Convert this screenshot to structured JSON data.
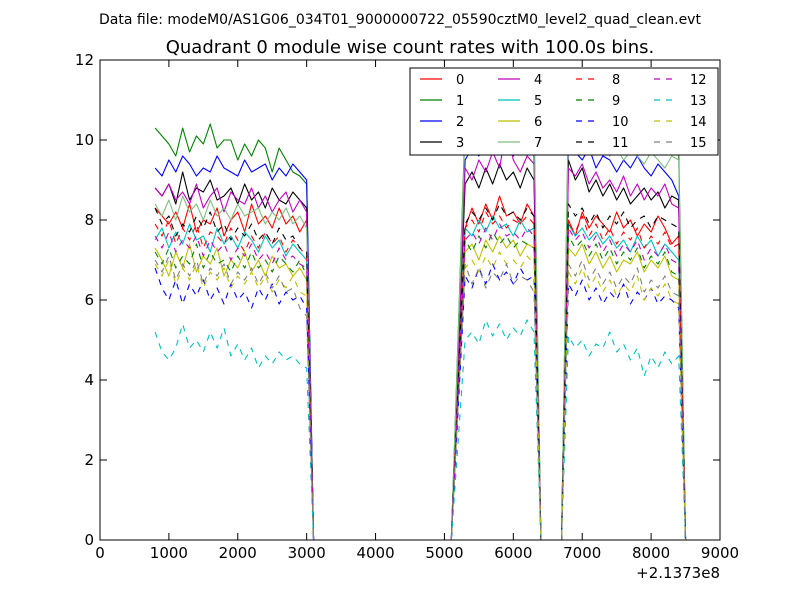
{
  "figure": {
    "supertitle": "Data file: modeM0/AS1G06_034T01_9000000722_05590cztM0_level2_quad_clean.evt",
    "title": "Quadrant 0 module wise count rates with 100.0s bins.",
    "x_offset_label": "+2.1373e8"
  },
  "chart_data": {
    "type": "line",
    "title": "Quadrant 0 module wise count rates with 100.0s bins.",
    "xlabel": "",
    "ylabel": "",
    "xlim": [
      0,
      9000
    ],
    "ylim": [
      0,
      12
    ],
    "x_ticks": [
      0,
      1000,
      2000,
      3000,
      4000,
      5000,
      6000,
      7000,
      8000,
      9000
    ],
    "y_ticks": [
      0,
      2,
      4,
      6,
      8,
      10,
      12
    ],
    "x_offset": 213730000,
    "grid": false,
    "legend_placement": "top-right",
    "legend_columns": 4,
    "segments": [
      {
        "start": 800,
        "end": 3000,
        "count": 23
      },
      {
        "start": 5300,
        "end": 6300,
        "count": 11
      },
      {
        "start": 6800,
        "end": 8400,
        "count": 17
      }
    ],
    "gap_zero_x": [
      3100,
      5100,
      6400,
      6700,
      8500
    ],
    "series": [
      {
        "name": "0",
        "color": "#ff0000",
        "style": "solid",
        "values": [
          8.3,
          8.1,
          7.9,
          8.2,
          7.8,
          8.4,
          7.7,
          8.0,
          7.9,
          8.3,
          7.6,
          8.0,
          8.2,
          7.7,
          8.4,
          7.9,
          8.1,
          7.8,
          8.3,
          7.9,
          8.1,
          7.7,
          8.0,
          7.8,
          8.3,
          7.9,
          8.4,
          8.0,
          8.6,
          8.1,
          8.2,
          7.9,
          8.4,
          8.1,
          8.0,
          7.6,
          8.2,
          7.8,
          8.1,
          7.9,
          7.7,
          8.2,
          7.8,
          8.0,
          7.6,
          7.9,
          7.7,
          8.1,
          7.8,
          7.4,
          7.6
        ]
      },
      {
        "name": "1",
        "color": "#008000",
        "style": "solid",
        "values": [
          10.3,
          10.1,
          9.9,
          9.6,
          10.3,
          9.7,
          10.1,
          9.9,
          10.4,
          9.8,
          10.0,
          10.0,
          9.5,
          9.9,
          9.6,
          10.0,
          9.8,
          9.2,
          9.8,
          9.5,
          9.2,
          9.1,
          8.9,
          10.4,
          10.2,
          10.5,
          10.3,
          10.6,
          10.4,
          10.2,
          10.5,
          10.4,
          10.6,
          10.4,
          10.8,
          10.5,
          10.2,
          10.4,
          9.8,
          10.0,
          9.8,
          10.1,
          9.8,
          10.2,
          9.6,
          9.8,
          10.0,
          9.7,
          10.1,
          9.9,
          9.8
        ]
      },
      {
        "name": "2",
        "color": "#0000ff",
        "style": "solid",
        "values": [
          9.3,
          9.1,
          9.5,
          9.2,
          9.6,
          9.4,
          9.1,
          9.3,
          9.2,
          9.6,
          9.3,
          9.2,
          9.1,
          9.5,
          9.2,
          9.3,
          9.4,
          9.0,
          9.3,
          9.1,
          9.4,
          9.2,
          9.0,
          9.5,
          9.8,
          9.6,
          9.9,
          9.7,
          10.0,
          9.8,
          9.6,
          9.9,
          10.1,
          9.7,
          10.0,
          9.7,
          9.5,
          9.8,
          9.3,
          9.6,
          9.5,
          9.2,
          9.5,
          9.3,
          9.6,
          9.3,
          9.1,
          9.4,
          9.2,
          9.0,
          8.6
        ]
      },
      {
        "name": "3",
        "color": "#000000",
        "style": "solid",
        "values": [
          8.8,
          8.6,
          8.9,
          8.4,
          9.2,
          8.5,
          8.8,
          8.7,
          9.0,
          8.5,
          8.6,
          8.8,
          8.4,
          8.9,
          8.5,
          8.7,
          8.3,
          8.8,
          8.5,
          8.4,
          8.7,
          8.5,
          8.3,
          8.9,
          9.2,
          8.8,
          9.3,
          8.9,
          9.4,
          9.0,
          9.2,
          8.8,
          9.3,
          9.0,
          9.5,
          9.0,
          9.3,
          8.7,
          9.0,
          8.6,
          8.9,
          8.5,
          8.8,
          8.4,
          8.6,
          8.8,
          8.5,
          8.7,
          8.3,
          8.6,
          8.5
        ]
      },
      {
        "name": "4",
        "color": "#bf00bf",
        "style": "solid",
        "values": [
          8.8,
          8.6,
          8.9,
          8.5,
          8.7,
          8.4,
          8.9,
          8.3,
          8.6,
          8.8,
          8.2,
          8.7,
          8.5,
          8.4,
          8.8,
          8.3,
          8.6,
          8.2,
          8.5,
          8.7,
          8.2,
          8.5,
          8.2,
          9.3,
          9.0,
          9.5,
          9.2,
          9.7,
          9.3,
          10.3,
          9.5,
          9.2,
          9.6,
          9.4,
          9.3,
          9.1,
          9.4,
          8.9,
          9.2,
          8.8,
          9.0,
          8.7,
          9.1,
          8.6,
          8.9,
          8.5,
          8.8,
          8.6,
          8.9,
          8.4,
          8.3
        ]
      },
      {
        "name": "5",
        "color": "#00bfbf",
        "style": "solid",
        "values": [
          7.5,
          7.8,
          7.3,
          7.7,
          7.4,
          7.9,
          7.5,
          7.6,
          7.2,
          7.8,
          7.4,
          7.6,
          7.3,
          7.7,
          7.5,
          7.2,
          7.6,
          7.3,
          7.5,
          7.1,
          7.4,
          7.2,
          7.0,
          7.8,
          7.6,
          8.0,
          7.7,
          8.1,
          7.8,
          7.9,
          7.6,
          8.0,
          7.7,
          7.8,
          7.9,
          7.6,
          7.8,
          7.5,
          7.7,
          7.4,
          7.6,
          7.3,
          7.5,
          7.2,
          7.6,
          7.3,
          7.5,
          7.1,
          7.4,
          7.2,
          7.0
        ]
      },
      {
        "name": "6",
        "color": "#bfbf00",
        "style": "solid",
        "values": [
          7.3,
          7.0,
          6.6,
          7.2,
          6.8,
          7.4,
          6.7,
          7.1,
          6.9,
          7.3,
          6.6,
          7.0,
          6.8,
          7.2,
          6.7,
          7.0,
          6.6,
          7.1,
          6.8,
          6.9,
          6.6,
          6.8,
          6.5,
          7.2,
          7.4,
          7.0,
          7.5,
          7.2,
          7.6,
          7.3,
          7.5,
          7.1,
          7.4,
          7.3,
          7.3,
          7.1,
          7.4,
          6.9,
          7.2,
          6.8,
          7.1,
          6.7,
          7.0,
          6.9,
          7.2,
          6.7,
          7.0,
          6.8,
          7.1,
          6.6,
          6.5
        ]
      },
      {
        "name": "7",
        "color": "#7fbf7f",
        "style": "solid",
        "values": [
          8.4,
          8.1,
          8.5,
          8.0,
          8.6,
          8.2,
          8.4,
          8.0,
          8.5,
          8.1,
          8.3,
          8.0,
          8.4,
          8.1,
          8.2,
          8.3,
          7.9,
          8.2,
          8.0,
          8.3,
          7.9,
          8.1,
          7.8,
          10.2,
          10.5,
          10.4,
          10.7,
          10.5,
          10.9,
          10.6,
          10.8,
          10.5,
          10.7,
          10.6,
          10.6,
          10.3,
          9.8,
          10.0,
          9.7,
          9.9,
          9.6,
          9.8,
          9.5,
          9.7,
          9.6,
          9.4,
          9.7,
          9.5,
          9.3,
          9.6,
          9.5
        ]
      },
      {
        "name": "8",
        "color": "#ff0000",
        "style": "dashed",
        "values": [
          7.9,
          7.6,
          8.0,
          7.4,
          7.8,
          7.5,
          7.9,
          7.3,
          7.7,
          7.6,
          7.4,
          7.8,
          7.5,
          7.2,
          7.6,
          7.3,
          7.7,
          7.4,
          7.6,
          7.2,
          7.5,
          7.3,
          7.1,
          7.8,
          8.0,
          7.7,
          8.2,
          7.9,
          8.1,
          7.8,
          8.0,
          7.9,
          8.1,
          7.9,
          7.9,
          7.7,
          8.1,
          7.6,
          7.9,
          7.5,
          7.8,
          7.4,
          7.7,
          7.5,
          7.8,
          7.3,
          7.6,
          7.4,
          7.7,
          7.3,
          7.4
        ]
      },
      {
        "name": "9",
        "color": "#008000",
        "style": "dashed",
        "values": [
          7.2,
          6.9,
          7.3,
          6.8,
          7.1,
          6.9,
          7.4,
          6.8,
          7.2,
          6.9,
          7.0,
          6.7,
          7.1,
          6.8,
          7.2,
          6.8,
          7.0,
          6.7,
          7.1,
          6.9,
          6.7,
          7.0,
          6.6,
          7.5,
          7.2,
          7.6,
          7.3,
          7.7,
          7.4,
          7.6,
          7.3,
          7.5,
          7.4,
          7.3,
          7.6,
          7.3,
          7.5,
          7.1,
          7.4,
          7.0,
          7.3,
          6.9,
          7.2,
          7.0,
          7.3,
          6.8,
          7.1,
          6.9,
          7.2,
          6.7,
          6.6
        ]
      },
      {
        "name": "10",
        "color": "#0000ff",
        "style": "dashed",
        "values": [
          6.8,
          6.3,
          6.0,
          6.5,
          5.9,
          6.4,
          6.1,
          6.5,
          6.0,
          6.3,
          5.9,
          6.4,
          6.0,
          6.2,
          5.8,
          6.3,
          6.0,
          6.4,
          5.9,
          6.2,
          6.0,
          6.1,
          5.8,
          6.6,
          6.3,
          6.8,
          6.4,
          6.9,
          6.5,
          6.7,
          6.4,
          6.8,
          6.5,
          6.6,
          6.4,
          6.1,
          6.5,
          6.0,
          6.3,
          5.9,
          6.2,
          6.0,
          6.4,
          5.9,
          6.2,
          6.0,
          6.3,
          5.9,
          6.1,
          6.0,
          5.8
        ]
      },
      {
        "name": "11",
        "color": "#000000",
        "style": "dashed",
        "values": [
          8.3,
          7.9,
          8.1,
          7.6,
          7.9,
          7.7,
          8.1,
          7.8,
          8.2,
          7.7,
          7.9,
          7.5,
          7.8,
          7.6,
          7.9,
          7.5,
          7.7,
          7.4,
          7.8,
          7.5,
          7.6,
          7.3,
          7.2,
          7.9,
          8.2,
          8.0,
          8.3,
          8.0,
          8.4,
          8.1,
          8.2,
          8.0,
          8.3,
          8.1,
          8.4,
          8.1,
          8.3,
          7.9,
          8.2,
          7.8,
          8.1,
          7.9,
          8.2,
          7.8,
          8.0,
          8.1,
          7.8,
          8.1,
          8.0,
          7.9,
          7.8
        ]
      },
      {
        "name": "12",
        "color": "#bf00bf",
        "style": "dashed",
        "values": [
          7.6,
          7.3,
          7.7,
          7.2,
          7.5,
          7.3,
          7.6,
          7.1,
          7.5,
          7.2,
          7.4,
          7.0,
          7.3,
          7.1,
          7.4,
          7.0,
          7.2,
          6.9,
          7.3,
          7.0,
          7.1,
          6.9,
          6.8,
          7.5,
          7.7,
          7.4,
          7.8,
          7.5,
          7.9,
          7.6,
          7.7,
          7.5,
          7.8,
          7.6,
          7.8,
          7.5,
          7.7,
          7.3,
          7.6,
          7.2,
          7.5,
          7.1,
          7.4,
          7.2,
          7.5,
          7.0,
          7.3,
          7.1,
          7.4,
          7.0,
          6.9
        ]
      },
      {
        "name": "13",
        "color": "#00bfbf",
        "style": "dashed",
        "values": [
          5.2,
          4.7,
          4.5,
          4.8,
          5.4,
          4.8,
          5.0,
          4.7,
          5.2,
          4.8,
          5.3,
          4.6,
          4.9,
          4.5,
          4.8,
          4.3,
          4.6,
          4.4,
          4.7,
          4.5,
          4.6,
          4.4,
          4.3,
          5.0,
          5.2,
          4.9,
          5.5,
          5.1,
          5.4,
          5.0,
          5.3,
          5.1,
          5.5,
          5.2,
          5.1,
          4.8,
          5.0,
          4.6,
          4.9,
          4.8,
          5.2,
          4.7,
          4.9,
          4.5,
          4.8,
          4.1,
          4.6,
          4.3,
          4.7,
          4.4,
          4.6
        ]
      },
      {
        "name": "14",
        "color": "#bfbf00",
        "style": "dashed",
        "values": [
          6.9,
          6.6,
          7.0,
          6.4,
          6.8,
          6.5,
          6.9,
          6.3,
          6.7,
          6.5,
          6.8,
          6.3,
          6.6,
          6.4,
          6.7,
          6.3,
          6.6,
          6.2,
          6.5,
          6.3,
          6.6,
          6.2,
          6.1,
          6.8,
          7.0,
          6.7,
          7.1,
          6.8,
          7.2,
          6.9,
          7.0,
          6.8,
          7.1,
          6.9,
          6.7,
          6.4,
          6.8,
          6.3,
          6.6,
          6.2,
          6.5,
          6.1,
          6.4,
          6.2,
          6.6,
          6.0,
          6.3,
          6.1,
          6.4,
          6.0,
          5.9
        ]
      },
      {
        "name": "15",
        "color": "#7f7f7f",
        "style": "dashed",
        "values": [
          7.0,
          6.7,
          7.1,
          6.5,
          6.9,
          6.6,
          7.0,
          6.4,
          6.8,
          6.6,
          6.9,
          6.4,
          6.7,
          6.5,
          6.8,
          6.4,
          6.7,
          6.3,
          6.6,
          6.2,
          6.3,
          5.8,
          5.6,
          6.9,
          6.4,
          6.8,
          6.3,
          6.7,
          6.5,
          6.9,
          6.4,
          6.6,
          6.5,
          6.2,
          6.9,
          6.6,
          7.0,
          6.5,
          6.8,
          6.4,
          6.7,
          6.3,
          6.6,
          6.4,
          6.8,
          6.2,
          6.5,
          6.3,
          6.6,
          6.2,
          6.1
        ]
      }
    ]
  }
}
